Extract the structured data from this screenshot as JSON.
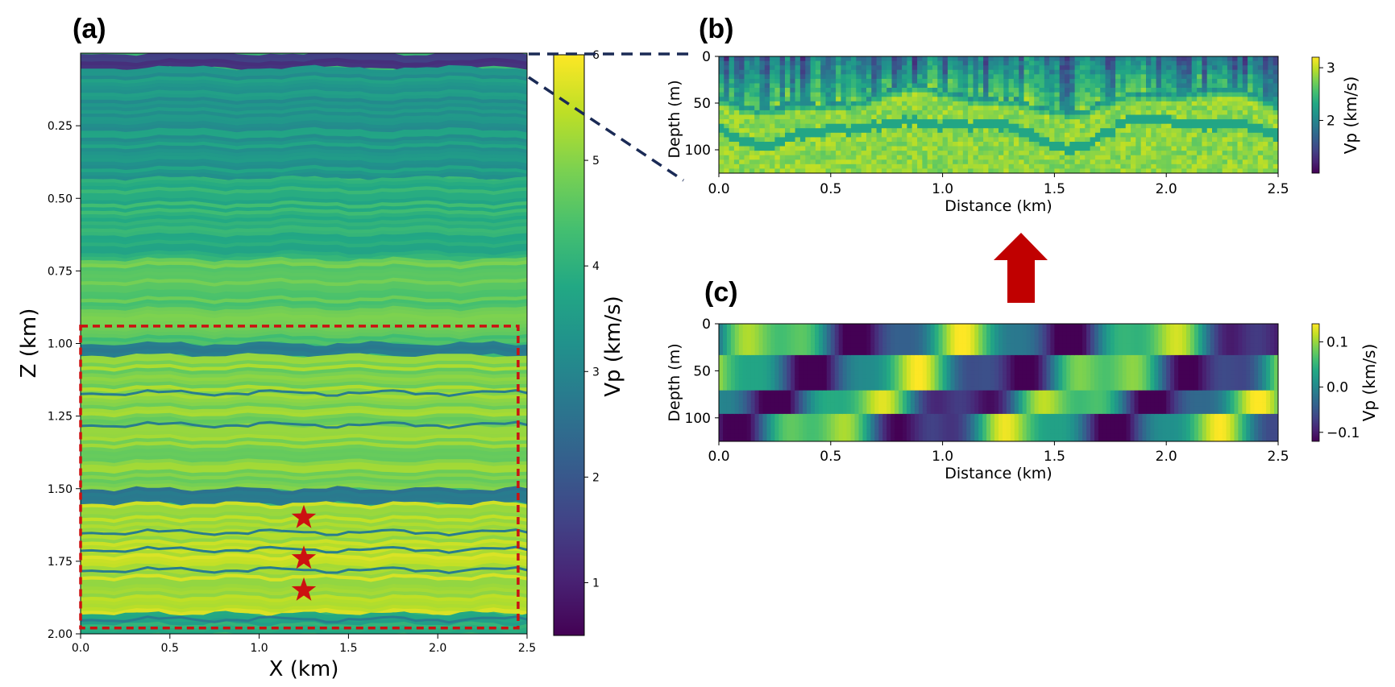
{
  "panel_labels": {
    "a": "(a)",
    "b": "(b)",
    "c": "(c)"
  },
  "colors": {
    "viridis": [
      "#440154",
      "#482475",
      "#414487",
      "#355f8d",
      "#2a788e",
      "#21918c",
      "#22a884",
      "#44bf70",
      "#7ad151",
      "#bddf26",
      "#fde725"
    ],
    "highlight": "#cc1111",
    "dashed_link": "#1a2a55",
    "arrow": "#c00000"
  },
  "chart_data": [
    {
      "id": "a",
      "type": "heatmap",
      "title": "",
      "xlabel": "X (km)",
      "ylabel": "Z (km)",
      "xlim": [
        0,
        2.5
      ],
      "ylim": [
        2.0,
        0.0
      ],
      "xticks": [
        "0.0",
        "0.5",
        "1.0",
        "1.5",
        "2.0",
        "2.5"
      ],
      "yticks": [
        "0.25",
        "0.50",
        "0.75",
        "1.00",
        "1.25",
        "1.50",
        "1.75",
        "2.00"
      ],
      "colorbar": {
        "label": "Vp (km/s)",
        "range": [
          0.5,
          6
        ],
        "ticks": [
          "1",
          "2",
          "3",
          "4",
          "5",
          "6"
        ]
      },
      "layers": [
        {
          "z_top": 0.0,
          "z_bottom": 0.05,
          "vp": 1.5
        },
        {
          "z_top": 0.05,
          "z_bottom": 0.43,
          "vp": 3.4
        },
        {
          "z_top": 0.43,
          "z_bottom": 0.71,
          "vp": 4.0
        },
        {
          "z_top": 0.71,
          "z_bottom": 1.0,
          "vp": 4.6
        },
        {
          "z_top": 1.0,
          "z_bottom": 1.04,
          "vp": 2.9
        },
        {
          "z_top": 1.04,
          "z_bottom": 1.5,
          "vp": 5.0
        },
        {
          "z_top": 1.5,
          "z_bottom": 1.55,
          "vp": 2.9
        },
        {
          "z_top": 1.55,
          "z_bottom": 1.93,
          "vp": 5.4
        },
        {
          "z_top": 1.93,
          "z_bottom": 2.0,
          "vp": 3.8
        }
      ],
      "thin_layers_z": [
        1.17,
        1.28,
        1.65,
        1.71,
        1.78,
        1.95
      ],
      "highlight_box": {
        "x": [
          0.0,
          2.45
        ],
        "z": [
          0.94,
          1.98
        ]
      },
      "stars": [
        {
          "x": 1.25,
          "z": 1.6
        },
        {
          "x": 1.25,
          "z": 1.74
        },
        {
          "x": 1.25,
          "z": 1.85
        }
      ]
    },
    {
      "id": "b",
      "type": "heatmap",
      "xlabel": "Distance (km)",
      "ylabel": "Depth (m)",
      "xlim": [
        0,
        2.5
      ],
      "ylim": [
        125,
        0
      ],
      "xticks": [
        "0.0",
        "0.5",
        "1.0",
        "1.5",
        "2.0",
        "2.5"
      ],
      "yticks": [
        "0",
        "50",
        "100"
      ],
      "colorbar": {
        "label": "Vp (km/s)",
        "range": [
          1.0,
          3.2
        ],
        "ticks": [
          "2",
          "3"
        ]
      }
    },
    {
      "id": "c",
      "type": "heatmap",
      "xlabel": "Distance (km)",
      "ylabel": "Depth (m)",
      "xlim": [
        0,
        2.5
      ],
      "ylim": [
        125,
        0
      ],
      "xticks": [
        "0.0",
        "0.5",
        "1.0",
        "1.5",
        "2.0",
        "2.5"
      ],
      "yticks": [
        "0",
        "50",
        "100"
      ],
      "colorbar": {
        "label": "Vp (km/s)",
        "range": [
          -0.12,
          0.14
        ],
        "ticks": [
          "0.1",
          "0.0",
          "−0.1"
        ]
      }
    }
  ]
}
